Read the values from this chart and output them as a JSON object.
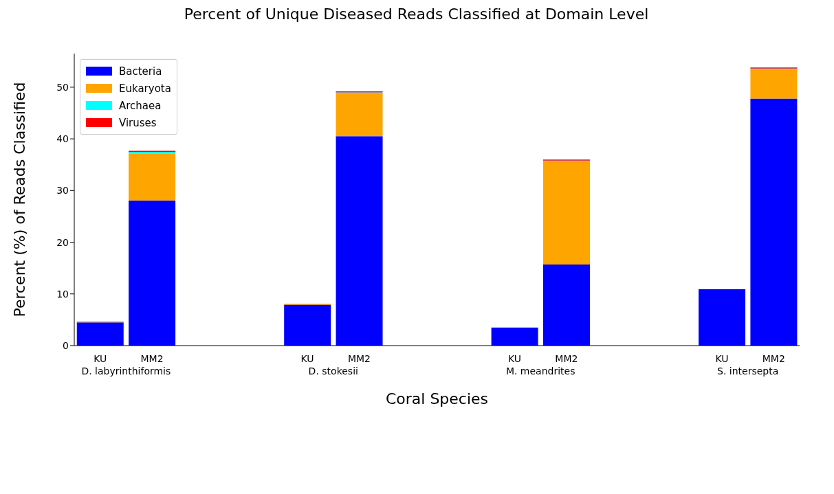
{
  "chart_data": {
    "type": "bar",
    "title": "Percent of Unique Diseased Reads Classified at Domain Level",
    "xlabel": "Coral Species",
    "ylabel": "Percent (%) of Reads Classified",
    "categories": [
      "KU",
      "MM2",
      null,
      null,
      "KU",
      "MM2",
      null,
      null,
      "KU",
      "MM2",
      null,
      null,
      "KU",
      "MM2"
    ],
    "series": [
      {
        "name": "Bacteria",
        "color": "#0000ff",
        "values": [
          4.5,
          28.1,
          null,
          null,
          7.9,
          40.5,
          null,
          null,
          3.5,
          15.7,
          null,
          null,
          10.9,
          47.8
        ]
      },
      {
        "name": "Eukaryota",
        "color": "#ffa500",
        "values": [
          0.2,
          9.1,
          null,
          null,
          0.2,
          8.3,
          null,
          null,
          0,
          19.8,
          null,
          null,
          0,
          5.5
        ]
      },
      {
        "name": "Archaea",
        "color": "#00ffff",
        "values": [
          0,
          0.3,
          null,
          null,
          0,
          0.2,
          null,
          null,
          0,
          0.3,
          null,
          null,
          0,
          0.3
        ]
      },
      {
        "name": "Viruses",
        "color": "#ff0000",
        "values": [
          0,
          0.2,
          null,
          null,
          0,
          0.2,
          null,
          null,
          0,
          0.2,
          null,
          null,
          0,
          0.2
        ]
      }
    ],
    "stacked": true,
    "ylim": [
      0,
      56.5
    ],
    "yticks": [
      0,
      10,
      20,
      30,
      40,
      50
    ],
    "grid": false,
    "legend": "top left",
    "annotations": [
      "D. labyrinthiformis",
      "D. stokesii",
      "M. meandrites",
      "S. intersepta"
    ]
  }
}
